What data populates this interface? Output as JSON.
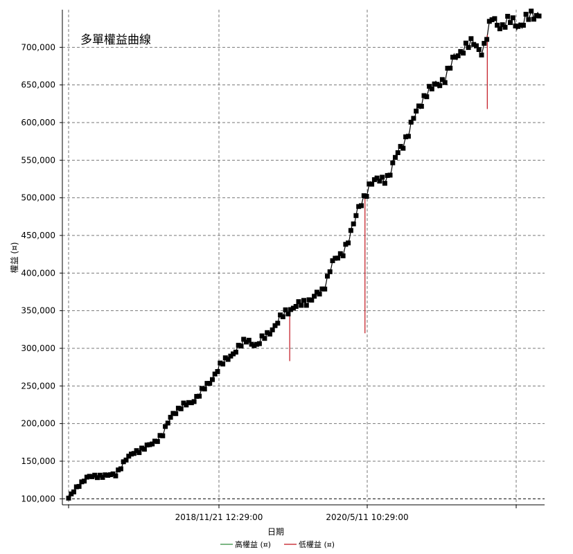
{
  "chart_data": {
    "type": "line",
    "title": "多單權益曲線",
    "xlabel": "日期",
    "ylabel": "權益 (¤)",
    "ylim": [
      92000,
      750000
    ],
    "yticks": [
      100000,
      150000,
      200000,
      250000,
      300000,
      350000,
      400000,
      450000,
      500000,
      550000,
      600000,
      650000,
      700000
    ],
    "ytick_labels": [
      "100,000",
      "150,000",
      "200,000",
      "250,000",
      "300,000",
      "350,000",
      "400,000",
      "450,000",
      "500,000",
      "550,000",
      "600,000",
      "650,000",
      "700,000"
    ],
    "xtick_labels": [
      "",
      "2018/11/21 12:29:00",
      "2020/5/11 10:29:00",
      ""
    ],
    "grid": true,
    "legend_position": "bottom-center",
    "colors": {
      "high": "#2e8b3a",
      "low": "#c0111b",
      "marker": "#000000"
    },
    "series": [
      {
        "name": "高權益 (¤)",
        "color": "#2e8b3a"
      },
      {
        "name": "低權益 (¤)",
        "color": "#c0111b"
      }
    ],
    "x_fraction": [
      0,
      0.02,
      0.04,
      0.06,
      0.08,
      0.1,
      0.12,
      0.14,
      0.16,
      0.18,
      0.2,
      0.22,
      0.24,
      0.26,
      0.28,
      0.3,
      0.32,
      0.34,
      0.36,
      0.38,
      0.4,
      0.42,
      0.44,
      0.46,
      0.48,
      0.5,
      0.52,
      0.54,
      0.56,
      0.58,
      0.6,
      0.62,
      0.64,
      0.66,
      0.68,
      0.7,
      0.72,
      0.74,
      0.76,
      0.78,
      0.8,
      0.82,
      0.84,
      0.86,
      0.88,
      0.9,
      0.92,
      0.94,
      0.96,
      0.98,
      1.0
    ],
    "values": [
      100000,
      118000,
      128000,
      131000,
      130000,
      133000,
      150000,
      163000,
      166000,
      175000,
      185000,
      213000,
      222000,
      228000,
      240000,
      255000,
      275000,
      288000,
      300000,
      312000,
      303000,
      318000,
      330000,
      348000,
      355000,
      360000,
      368000,
      375000,
      415000,
      422000,
      455000,
      490000,
      518000,
      524000,
      528000,
      560000,
      583000,
      615000,
      640000,
      648000,
      660000,
      685000,
      700000,
      705000,
      695000,
      738000,
      728000,
      735000,
      730000,
      740000,
      745000
    ],
    "spikes": [
      {
        "x_fraction": 0.47,
        "low": 283000
      },
      {
        "x_fraction": 0.63,
        "low": 320000
      },
      {
        "x_fraction": 0.89,
        "low": 618000
      }
    ]
  }
}
